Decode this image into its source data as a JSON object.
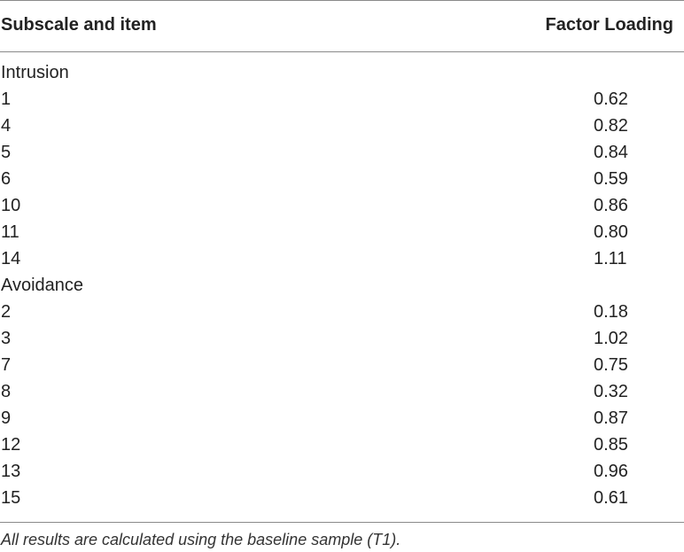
{
  "table": {
    "headers": {
      "item": "Subscale and item",
      "loading": "Factor Loading"
    },
    "rows": [
      {
        "label": "Intrusion",
        "value": ""
      },
      {
        "label": "1",
        "value": "0.62"
      },
      {
        "label": "4",
        "value": "0.82"
      },
      {
        "label": "5",
        "value": "0.84"
      },
      {
        "label": "6",
        "value": "0.59"
      },
      {
        "label": "10",
        "value": "0.86"
      },
      {
        "label": "11",
        "value": "0.80"
      },
      {
        "label": "14",
        "value": "1.11"
      },
      {
        "label": "Avoidance",
        "value": ""
      },
      {
        "label": "2",
        "value": "0.18"
      },
      {
        "label": "3",
        "value": "1.02"
      },
      {
        "label": "7",
        "value": "0.75"
      },
      {
        "label": "8",
        "value": "0.32"
      },
      {
        "label": "9",
        "value": "0.87"
      },
      {
        "label": "12",
        "value": "0.85"
      },
      {
        "label": "13",
        "value": "0.96"
      },
      {
        "label": "15",
        "value": "0.61"
      }
    ]
  },
  "footnote": "All results are calculated using the baseline sample (T1)."
}
